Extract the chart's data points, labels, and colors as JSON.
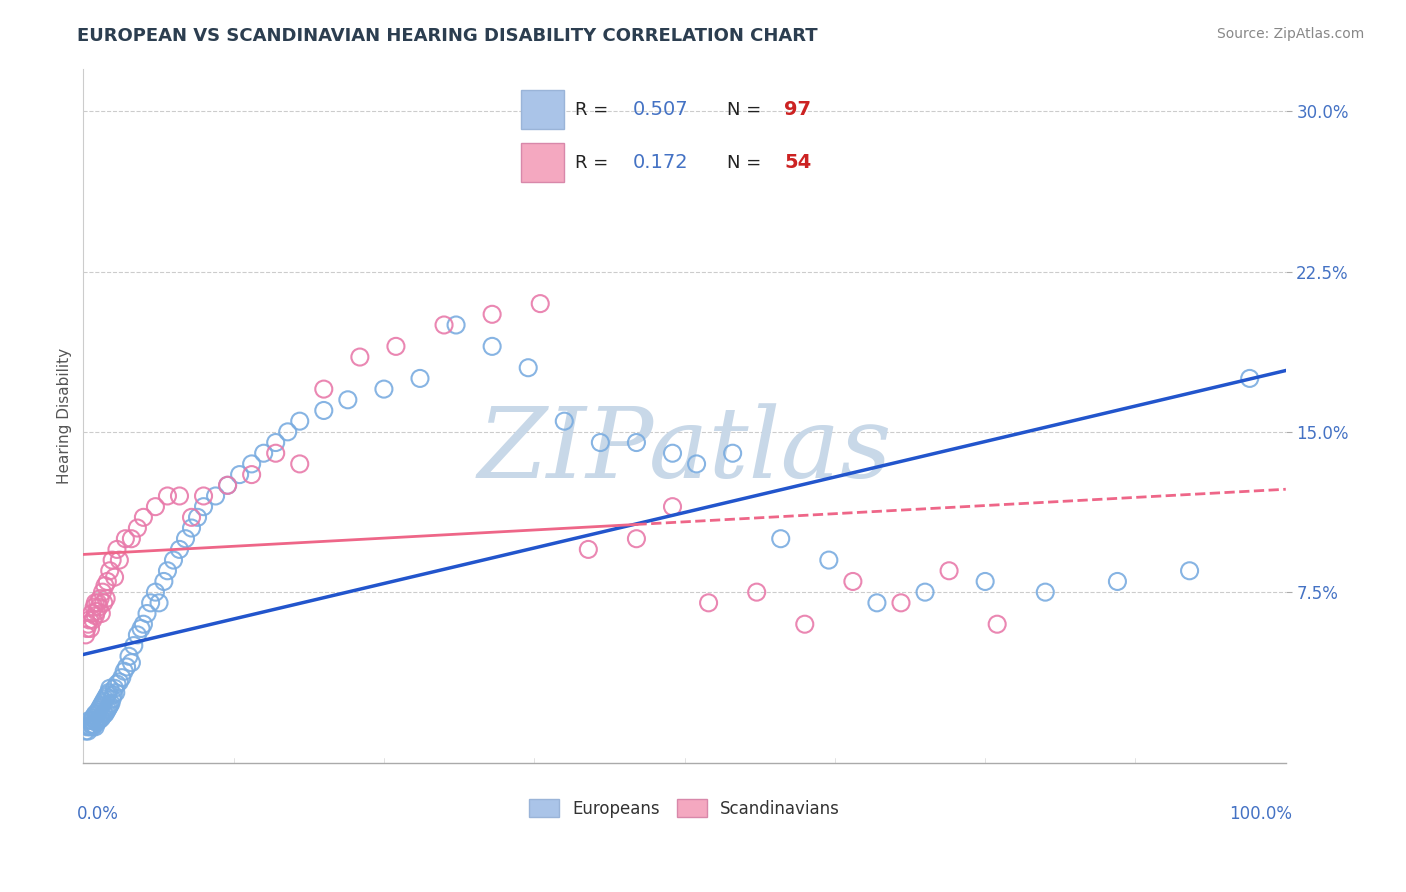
{
  "title": "EUROPEAN VS SCANDINAVIAN HEARING DISABILITY CORRELATION CHART",
  "source": "Source: ZipAtlas.com",
  "ylabel": "Hearing Disability",
  "xlim": [
    0.0,
    1.0
  ],
  "ylim": [
    -0.005,
    0.32
  ],
  "ytick_vals": [
    0.075,
    0.15,
    0.225,
    0.3
  ],
  "ytick_labels": [
    "7.5%",
    "15.0%",
    "22.5%",
    "30.0%"
  ],
  "background_color": "#ffffff",
  "grid_color": "#cccccc",
  "title_color": "#2c3e50",
  "tick_color": "#4472c4",
  "european_face_color": "none",
  "european_edge_color": "#7aace0",
  "scandinavian_face_color": "none",
  "scandinavian_edge_color": "#e87aaa",
  "european_line_color": "#2255cc",
  "scandinavian_solid_color": "#ee6688",
  "scandinavian_dash_color": "#ee6688",
  "watermark_text": "ZIPatlas",
  "watermark_color": "#c8d8e8",
  "eu_R": "0.507",
  "eu_N": "97",
  "sc_R": "0.172",
  "sc_N": "54",
  "eu_patch_color": "#aac4e8",
  "sc_patch_color": "#f4a8c0",
  "R_color": "#4472c4",
  "N_color": "#cc2222",
  "eu_x": [
    0.002,
    0.003,
    0.004,
    0.005,
    0.005,
    0.006,
    0.007,
    0.007,
    0.008,
    0.008,
    0.009,
    0.009,
    0.01,
    0.01,
    0.01,
    0.011,
    0.011,
    0.012,
    0.012,
    0.013,
    0.013,
    0.014,
    0.014,
    0.015,
    0.015,
    0.016,
    0.016,
    0.017,
    0.017,
    0.018,
    0.018,
    0.019,
    0.019,
    0.02,
    0.02,
    0.021,
    0.021,
    0.022,
    0.022,
    0.023,
    0.024,
    0.025,
    0.026,
    0.027,
    0.028,
    0.03,
    0.032,
    0.034,
    0.036,
    0.038,
    0.04,
    0.042,
    0.045,
    0.048,
    0.05,
    0.053,
    0.056,
    0.06,
    0.063,
    0.067,
    0.07,
    0.075,
    0.08,
    0.085,
    0.09,
    0.095,
    0.1,
    0.11,
    0.12,
    0.13,
    0.14,
    0.15,
    0.16,
    0.17,
    0.18,
    0.2,
    0.22,
    0.25,
    0.28,
    0.31,
    0.34,
    0.37,
    0.4,
    0.43,
    0.46,
    0.49,
    0.51,
    0.54,
    0.58,
    0.62,
    0.66,
    0.7,
    0.75,
    0.8,
    0.86,
    0.92,
    0.97
  ],
  "eu_y": [
    0.01,
    0.012,
    0.01,
    0.012,
    0.015,
    0.012,
    0.013,
    0.015,
    0.012,
    0.016,
    0.013,
    0.017,
    0.012,
    0.015,
    0.018,
    0.014,
    0.018,
    0.015,
    0.019,
    0.015,
    0.02,
    0.016,
    0.021,
    0.016,
    0.022,
    0.017,
    0.023,
    0.018,
    0.024,
    0.018,
    0.025,
    0.019,
    0.026,
    0.02,
    0.027,
    0.021,
    0.028,
    0.022,
    0.03,
    0.023,
    0.025,
    0.027,
    0.03,
    0.028,
    0.032,
    0.033,
    0.035,
    0.038,
    0.04,
    0.045,
    0.042,
    0.05,
    0.055,
    0.058,
    0.06,
    0.065,
    0.07,
    0.075,
    0.07,
    0.08,
    0.085,
    0.09,
    0.095,
    0.1,
    0.105,
    0.11,
    0.115,
    0.12,
    0.125,
    0.13,
    0.135,
    0.14,
    0.145,
    0.15,
    0.155,
    0.16,
    0.165,
    0.17,
    0.175,
    0.2,
    0.19,
    0.18,
    0.155,
    0.145,
    0.145,
    0.14,
    0.135,
    0.14,
    0.1,
    0.09,
    0.07,
    0.075,
    0.08,
    0.075,
    0.08,
    0.085,
    0.175
  ],
  "sc_x": [
    0.002,
    0.003,
    0.004,
    0.005,
    0.006,
    0.007,
    0.008,
    0.009,
    0.01,
    0.01,
    0.011,
    0.012,
    0.013,
    0.014,
    0.015,
    0.016,
    0.017,
    0.018,
    0.019,
    0.02,
    0.022,
    0.024,
    0.026,
    0.028,
    0.03,
    0.035,
    0.04,
    0.045,
    0.05,
    0.06,
    0.07,
    0.08,
    0.09,
    0.1,
    0.12,
    0.14,
    0.16,
    0.18,
    0.2,
    0.23,
    0.26,
    0.3,
    0.34,
    0.38,
    0.42,
    0.46,
    0.49,
    0.52,
    0.56,
    0.6,
    0.64,
    0.68,
    0.72,
    0.76
  ],
  "sc_y": [
    0.055,
    0.058,
    0.06,
    0.062,
    0.058,
    0.065,
    0.062,
    0.068,
    0.064,
    0.07,
    0.066,
    0.07,
    0.068,
    0.072,
    0.065,
    0.075,
    0.07,
    0.078,
    0.072,
    0.08,
    0.085,
    0.09,
    0.082,
    0.095,
    0.09,
    0.1,
    0.1,
    0.105,
    0.11,
    0.115,
    0.12,
    0.12,
    0.11,
    0.12,
    0.125,
    0.13,
    0.14,
    0.135,
    0.17,
    0.185,
    0.19,
    0.2,
    0.205,
    0.21,
    0.095,
    0.1,
    0.115,
    0.07,
    0.075,
    0.06,
    0.08,
    0.07,
    0.085,
    0.06
  ]
}
